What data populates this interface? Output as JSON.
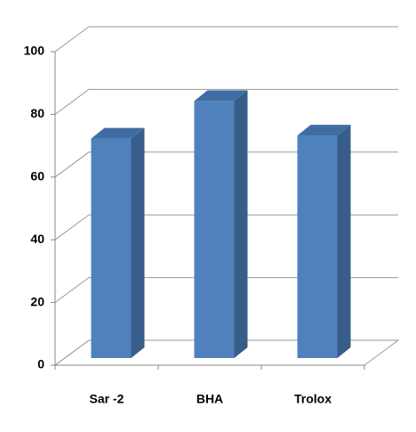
{
  "chart_data": {
    "type": "bar",
    "categories": [
      "Sar -2",
      "BHA",
      "Trolox"
    ],
    "values": [
      70,
      82,
      71
    ],
    "color": "#4f81bd",
    "ylim": [
      0,
      100
    ],
    "yticks": [
      0,
      20,
      40,
      60,
      80,
      100
    ],
    "grid": true
  }
}
